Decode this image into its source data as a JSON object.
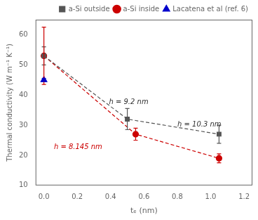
{
  "chart_data": {
    "type": "scatter",
    "x_label": "tₑ (nm)",
    "y_label": "Thermal conductivity (W m⁻¹ K⁻¹)",
    "xlim": [
      -0.05,
      1.25
    ],
    "ylim": [
      10,
      65
    ],
    "xticks": [
      {
        "value": 0,
        "label": "0.0"
      },
      0.2,
      0.4,
      0.6,
      0.8,
      {
        "value": 1,
        "label": "1.0"
      },
      1.2
    ],
    "yticks": [
      10,
      20,
      30,
      40,
      50,
      60
    ],
    "grid": false,
    "legend": "upper right",
    "series": [
      {
        "name": "a-Si outside",
        "color": "#555555",
        "marker": "square",
        "line_style": "dashed",
        "x": [
          0.0,
          0.5,
          1.05
        ],
        "values": [
          53.0,
          32.0,
          27.0
        ],
        "errors": [
          3.0,
          3.5,
          3.0
        ]
      },
      {
        "name": "a-Si inside",
        "color": "#cc0000",
        "marker": "circle",
        "line_style": "dashed",
        "x": [
          0.0,
          0.55,
          1.05
        ],
        "values": [
          53.0,
          27.0,
          19.0
        ],
        "errors": [
          9.5,
          2.0,
          1.5
        ]
      },
      {
        "name": "Lacatena et al (ref. 6)",
        "color": "#0000cc",
        "marker": "triangle",
        "x": [
          0.0
        ],
        "values": [
          45.0
        ],
        "errors": [
          0.5
        ]
      }
    ],
    "annotations": [
      {
        "text": "h = 9.2 nm",
        "x": 0.39,
        "y": 37.0,
        "color": "#333333"
      },
      {
        "text": "h = 10.3 nm",
        "x": 0.8,
        "y": 29.5,
        "color": "#333333"
      },
      {
        "text": "h = 8.145 nm",
        "x": 0.06,
        "y": 22.0,
        "color": "#cc0000"
      }
    ]
  }
}
